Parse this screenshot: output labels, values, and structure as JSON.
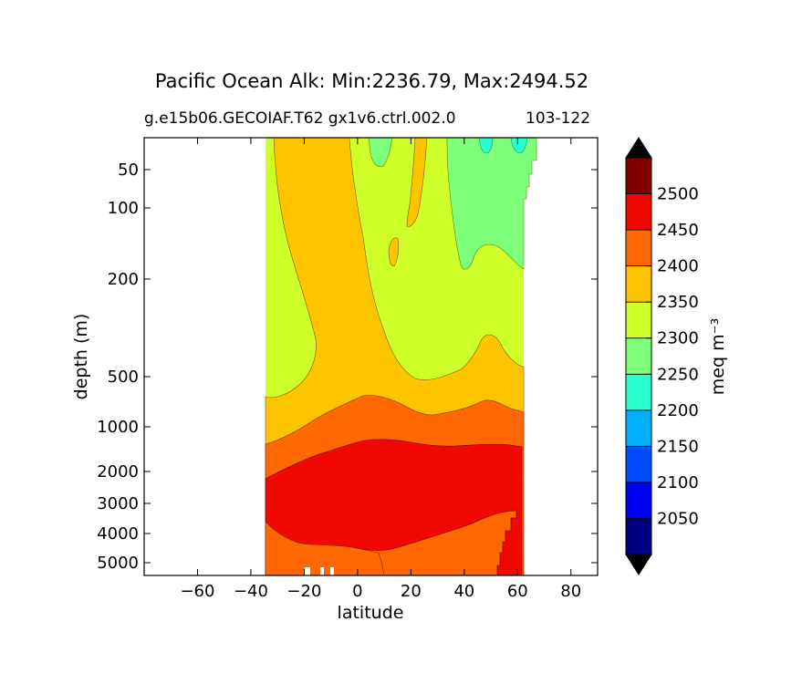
{
  "title": "Pacific Ocean Alk: Min:2236.79, Max:2494.52",
  "subtitle_left": "g.e15b06.GECOIAF.T62 gx1v6.ctrl.002.0",
  "subtitle_right": "103-122",
  "chart_data": {
    "type": "contourf",
    "xlabel": "latitude",
    "ylabel": "depth (m)",
    "xlim": [
      -80,
      90
    ],
    "x_ticks": [
      -60,
      -40,
      -20,
      0,
      20,
      40,
      60,
      80
    ],
    "y_ticks": [
      50,
      100,
      200,
      500,
      1000,
      2000,
      3000,
      4000,
      5000
    ],
    "y_scale": "nonlinear (stretched depth)",
    "y_inverted": true,
    "colorbar": {
      "label": "meq m⁻³",
      "levels": [
        2000,
        2050,
        2100,
        2150,
        2200,
        2250,
        2300,
        2350,
        2400,
        2450,
        2500,
        2550
      ],
      "tick_labels": [
        2050,
        2100,
        2150,
        2200,
        2250,
        2300,
        2350,
        2400,
        2450,
        2500
      ],
      "colors": [
        "#00007f",
        "#0000f0",
        "#004cff",
        "#00b0ff",
        "#29ffce",
        "#7dff7a",
        "#ceff29",
        "#ffc400",
        "#ff6800",
        "#f10800",
        "#7f0000"
      ],
      "extend": "both",
      "under_color": "#000000",
      "over_color": "#000000"
    },
    "data_extent": {
      "lat_min": -34,
      "lat_max": 67,
      "depth_max": 5500
    },
    "bands": [
      {
        "level": "2250-2300",
        "color": "#7dff7a",
        "region": "north 20N-60N, 0-200 m"
      },
      {
        "level": "2200-2250",
        "color": "#29ffce",
        "region": "small patches near surface, ~0N and ~60N"
      },
      {
        "level": "2300-2350",
        "color": "#ceff29",
        "region": "upper ocean 0-700 m"
      },
      {
        "level": "2350-2400",
        "color": "#ffc400",
        "region": "mid depth, tongue from south surface"
      },
      {
        "level": "2400-2450",
        "color": "#ff6800",
        "region": "~700-1500 m and deep south bottom"
      },
      {
        "level": "2450-2500",
        "color": "#f10800",
        "region": "deep 1500-5500 m"
      }
    ],
    "min": 2236.79,
    "max": 2494.52
  }
}
